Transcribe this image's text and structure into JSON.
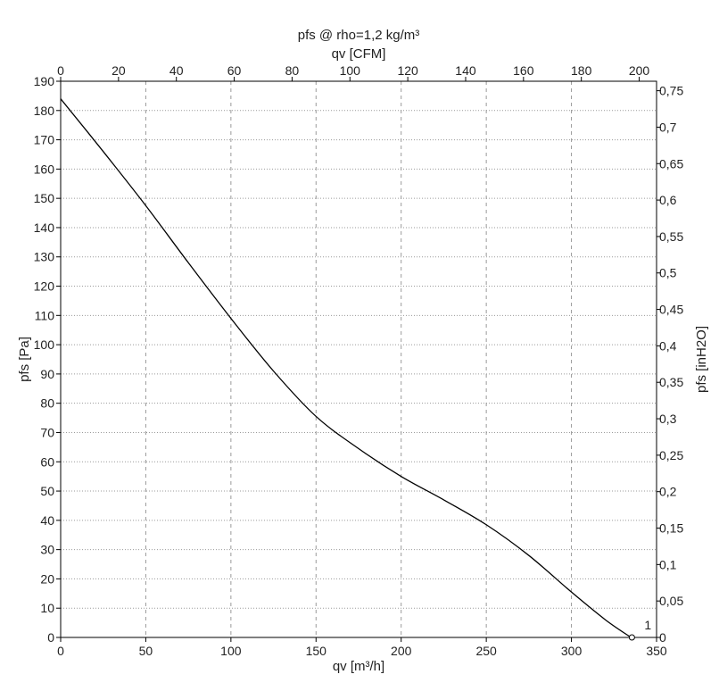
{
  "chart_data": {
    "type": "line",
    "title": "pfs @ rho=1,2 kg/m³",
    "x_bottom": {
      "label": "qv [m³/h]",
      "range": [
        0,
        350
      ],
      "ticks": [
        0,
        50,
        100,
        150,
        200,
        250,
        300,
        350
      ]
    },
    "x_top": {
      "label": "qv [CFM]",
      "range": [
        0,
        206
      ],
      "ticks": [
        0,
        20,
        40,
        60,
        80,
        100,
        120,
        140,
        160,
        180,
        200
      ]
    },
    "y_left": {
      "label": "pfs [Pa]",
      "range": [
        0,
        190
      ],
      "ticks": [
        0,
        10,
        20,
        30,
        40,
        50,
        60,
        70,
        80,
        90,
        100,
        110,
        120,
        130,
        140,
        150,
        160,
        170,
        180,
        190
      ]
    },
    "y_right": {
      "label": "pfs [inH2O]",
      "range": [
        0,
        0.763
      ],
      "ticks": [
        "0",
        "0,05",
        "0,1",
        "0,15",
        "0,2",
        "0,25",
        "0,3",
        "0,35",
        "0,4",
        "0,45",
        "0,5",
        "0,55",
        "0,6",
        "0,65",
        "0,7",
        "0,75"
      ],
      "tick_values": [
        0,
        0.05,
        0.1,
        0.15,
        0.2,
        0.25,
        0.3,
        0.35,
        0.4,
        0.45,
        0.5,
        0.55,
        0.6,
        0.65,
        0.7,
        0.75
      ]
    },
    "grid": true,
    "series": [
      {
        "label": "1",
        "color": "#000000",
        "x": [
          0,
          25,
          50,
          75,
          100,
          125,
          150,
          175,
          200,
          225,
          250,
          275,
          300,
          320,
          335
        ],
        "y": [
          184,
          166,
          147.5,
          128,
          109,
          91,
          75.5,
          64.5,
          55,
          47,
          38.5,
          28,
          15.5,
          6,
          0
        ]
      }
    ]
  }
}
